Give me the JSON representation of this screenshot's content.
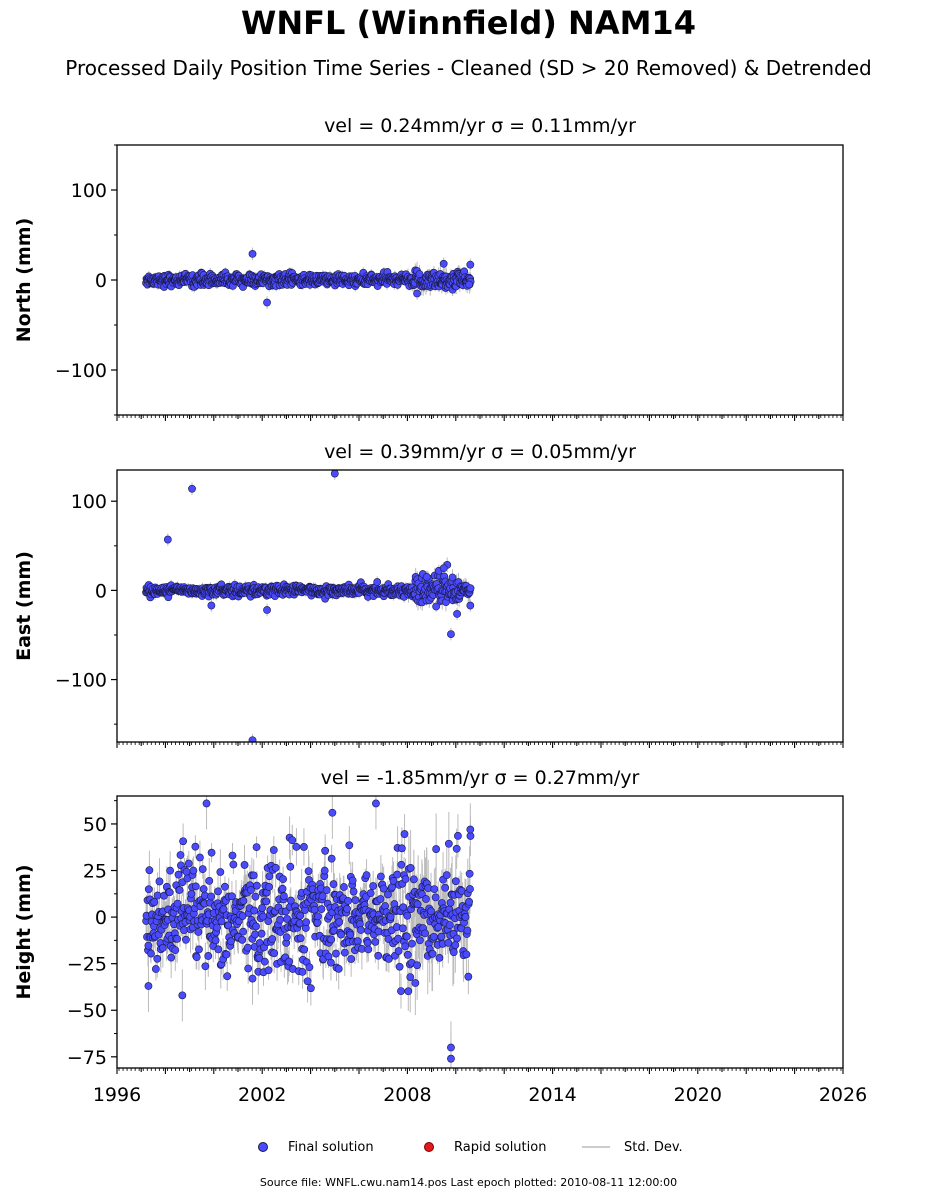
{
  "header": {
    "title": "WNFL (Winnfield) NAM14",
    "subtitle": "Processed Daily Position Time Series - Cleaned (SD > 20 Removed) & Detrended"
  },
  "legend": {
    "final": "Final solution",
    "rapid": "Rapid solution",
    "std": "Std. Dev."
  },
  "footer": {
    "source": "Source file: WNFL.cwu.nam14.pos  Last epoch plotted: 2010-08-11 12:00:00"
  },
  "colors": {
    "final": "#4a4aff",
    "final_edge": "#1a1a44",
    "rapid": "#e31a1c",
    "std": "#bbbbbb"
  },
  "chart_data": [
    {
      "type": "scatter",
      "title": "vel = 0.24mm/yr   σ = 0.11mm/yr",
      "ylabel": "North (mm)",
      "xlim": [
        1996,
        2026
      ],
      "ylim": [
        -150,
        150
      ],
      "yticks": [
        -100,
        0,
        100
      ],
      "ytick_labels": [
        "−100",
        "0",
        "100"
      ],
      "data_span": [
        1997.2,
        2010.61
      ],
      "noise_sd": 3.2,
      "err_sd": 5,
      "outliers": [
        [
          2001.6,
          29
        ],
        [
          2002.2,
          -25
        ],
        [
          2008.4,
          -15
        ],
        [
          2009.5,
          18
        ],
        [
          2010.6,
          17
        ],
        [
          2010.55,
          -5
        ]
      ]
    },
    {
      "type": "scatter",
      "title": "vel = 0.39mm/yr   σ = 0.05mm/yr",
      "ylabel": "East (mm)",
      "xlim": [
        1996,
        2026
      ],
      "ylim": [
        -170,
        135
      ],
      "yticks": [
        -100,
        0,
        100
      ],
      "ytick_labels": [
        "−100",
        "0",
        "100"
      ],
      "data_span": [
        1997.2,
        2010.61
      ],
      "noise_sd": 2.8,
      "err_sd": 5,
      "outliers": [
        [
          1998.1,
          57
        ],
        [
          1999.1,
          114
        ],
        [
          2001.6,
          -168
        ],
        [
          2005.0,
          131
        ],
        [
          2002.2,
          -22
        ],
        [
          1999.9,
          -17
        ],
        [
          2009.8,
          -49
        ],
        [
          2008.8,
          15
        ],
        [
          2009.3,
          22
        ],
        [
          2009.5,
          25
        ],
        [
          2010.6,
          -17
        ]
      ]
    },
    {
      "type": "scatter",
      "title": "vel = -1.85mm/yr   σ = 0.27mm/yr",
      "ylabel": "Height (mm)",
      "xlim": [
        1996,
        2026
      ],
      "ylim": [
        -81,
        65
      ],
      "yticks": [
        -75,
        -50,
        -25,
        0,
        25,
        50
      ],
      "ytick_labels": [
        "−75",
        "−50",
        "−25",
        "0",
        "25",
        "50"
      ],
      "xticks": [
        1996,
        2002,
        2008,
        2014,
        2020,
        2026
      ],
      "data_span": [
        1997.2,
        2010.61
      ],
      "noise_sd": 15,
      "err_sd": 10,
      "outliers": [
        [
          1997.3,
          -37
        ],
        [
          1999.7,
          61
        ],
        [
          2009.8,
          -70
        ],
        [
          2009.8,
          -76
        ],
        [
          2006.7,
          61
        ],
        [
          2004.9,
          56
        ],
        [
          2010.6,
          47
        ],
        [
          2001.6,
          -33
        ],
        [
          1998.7,
          -42
        ]
      ]
    }
  ]
}
